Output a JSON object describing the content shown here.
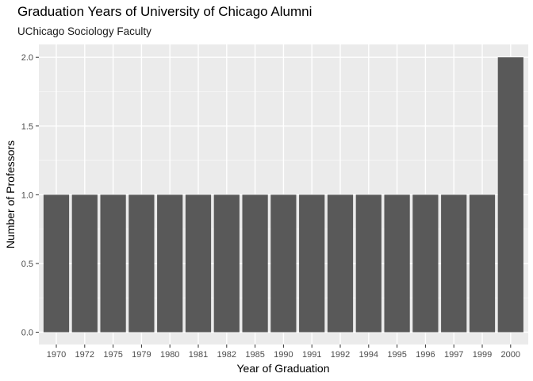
{
  "chart_data": {
    "type": "bar",
    "title": "Graduation Years of University of Chicago Alumni",
    "subtitle": "UChicago Sociology Faculty",
    "xlabel": "Year of Graduation",
    "ylabel": "Number of Professors",
    "categories": [
      "1970",
      "1972",
      "1975",
      "1979",
      "1980",
      "1981",
      "1982",
      "1985",
      "1990",
      "1991",
      "1992",
      "1994",
      "1995",
      "1996",
      "1997",
      "1999",
      "2000"
    ],
    "values": [
      1,
      1,
      1,
      1,
      1,
      1,
      1,
      1,
      1,
      1,
      1,
      1,
      1,
      1,
      1,
      1,
      2
    ],
    "ylim": [
      0,
      2.1
    ],
    "yticks": [
      "0.0",
      "0.5",
      "1.0",
      "1.5",
      "2.0"
    ],
    "grid": true,
    "colors": {
      "bar": "#595959",
      "panel": "#ebebeb",
      "grid_major": "#ffffff"
    }
  }
}
